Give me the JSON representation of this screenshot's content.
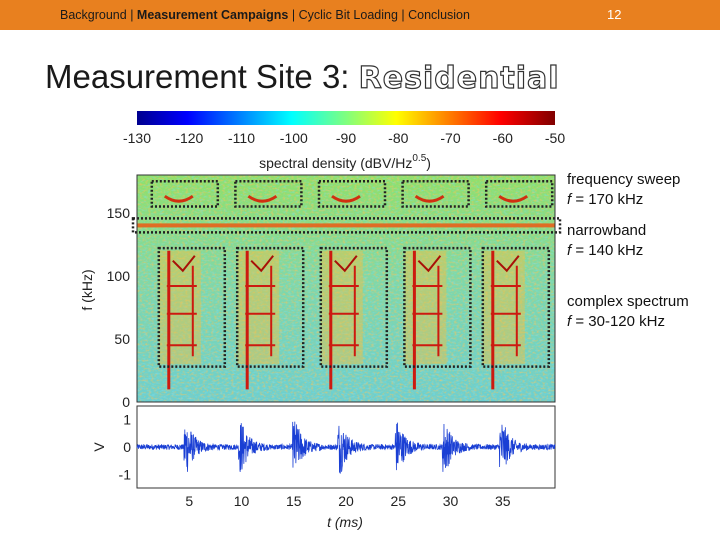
{
  "header": {
    "nav": [
      "Background",
      "Measurement Campaigns",
      "Cyclic Bit Loading",
      "Conclusion"
    ],
    "active_index": 1,
    "separator": " | ",
    "page_number": "12",
    "bar_color": "#e8801f"
  },
  "title": {
    "prefix": "Measurement Site 3: ",
    "highlight": "Residential"
  },
  "annotations": [
    {
      "label": "frequency sweep",
      "var": "f",
      "value": " = 170 kHz"
    },
    {
      "label": "narrowband",
      "var": "f",
      "value": " = 140 kHz"
    },
    {
      "label": "complex spectrum",
      "var": "f",
      "value": " = 30-120 kHz"
    }
  ],
  "chart_data": [
    {
      "type": "heatmap",
      "colorbar": {
        "ticks": [
          "-130",
          "-120",
          "-110",
          "-100",
          "-90",
          "-80",
          "-70",
          "-60",
          "-50"
        ],
        "range": [
          -130,
          -50
        ],
        "label": "spectral density (dBV/Hz",
        "label_sup": "0.5",
        "label_end": ")",
        "colormap": "jet"
      },
      "ylabel": "f (kHz)",
      "yticks": [
        0,
        50,
        100,
        150
      ],
      "ylim": [
        0,
        180
      ],
      "xlim": [
        0,
        40
      ],
      "features": {
        "sweep_events_ms": [
          4,
          12,
          20,
          28,
          36
        ],
        "sweep_freq_khz": 170,
        "narrowband_khz": 140,
        "complex_events_ms": [
          4,
          11.5,
          19.5,
          27.5,
          35
        ],
        "complex_band_khz": [
          30,
          120
        ]
      }
    },
    {
      "type": "line",
      "ylabel": "V",
      "xlabel": "t (ms)",
      "xticks": [
        5,
        10,
        15,
        20,
        25,
        30,
        35
      ],
      "yticks": [
        1,
        0,
        -1
      ],
      "xlim": [
        0,
        40
      ],
      "ylim": [
        -1.5,
        1.5
      ],
      "burst_times_ms": [
        4.8,
        10,
        15.2,
        19.5,
        25,
        29.5,
        35
      ]
    }
  ]
}
